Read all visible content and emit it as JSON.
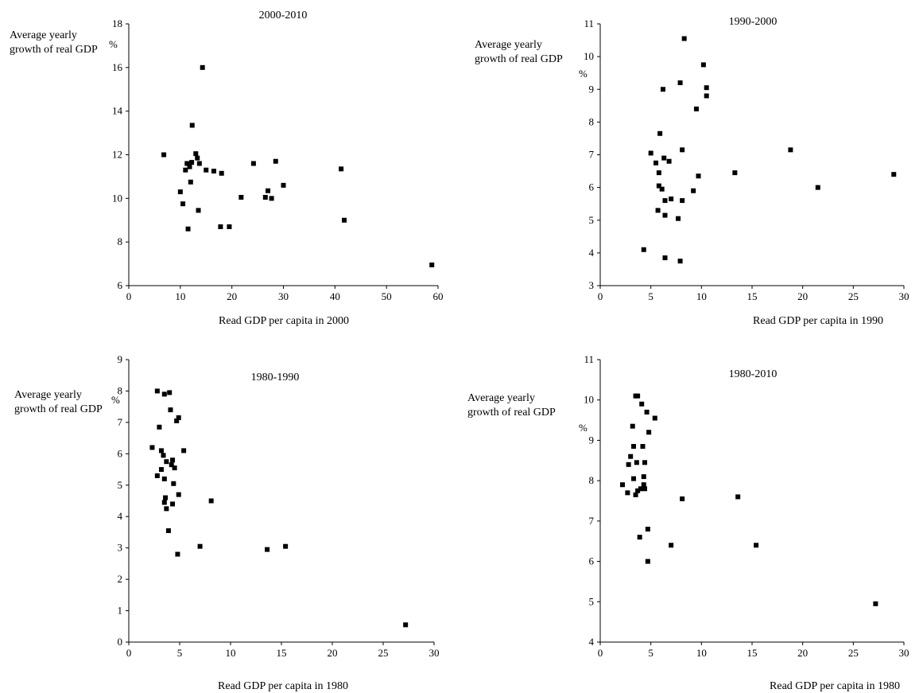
{
  "chart_data": [
    {
      "type": "scatter",
      "title": "2000-2010",
      "ylabel": "Average yearly growth of real GDP",
      "yunit": "%",
      "xlabel": "Read GDP per capita in 2000",
      "xlim": [
        0,
        60
      ],
      "ylim": [
        6,
        18
      ],
      "xticks": [
        0,
        10,
        20,
        30,
        40,
        50,
        60
      ],
      "yticks": [
        6,
        8,
        10,
        12,
        14,
        16,
        18
      ],
      "points": [
        [
          6.8,
          12.0
        ],
        [
          10.0,
          10.3
        ],
        [
          10.5,
          9.75
        ],
        [
          11.0,
          11.3
        ],
        [
          11.3,
          11.6
        ],
        [
          11.5,
          8.6
        ],
        [
          11.8,
          11.45
        ],
        [
          12.0,
          10.75
        ],
        [
          12.2,
          11.65
        ],
        [
          12.3,
          13.35
        ],
        [
          13.0,
          12.05
        ],
        [
          13.3,
          11.85
        ],
        [
          13.5,
          9.45
        ],
        [
          13.7,
          11.6
        ],
        [
          14.3,
          16.0
        ],
        [
          15.0,
          11.3
        ],
        [
          16.5,
          11.25
        ],
        [
          17.8,
          8.7
        ],
        [
          18.0,
          11.15
        ],
        [
          19.5,
          8.7
        ],
        [
          21.8,
          10.05
        ],
        [
          24.2,
          11.6
        ],
        [
          26.5,
          10.05
        ],
        [
          27.0,
          10.35
        ],
        [
          27.7,
          10.0
        ],
        [
          28.5,
          11.7
        ],
        [
          30.0,
          10.6
        ],
        [
          41.2,
          11.35
        ],
        [
          41.8,
          9.0
        ],
        [
          58.8,
          6.95
        ]
      ]
    },
    {
      "type": "scatter",
      "title": "1990-2000",
      "ylabel": "Average yearly growth of real GDP",
      "yunit": "%",
      "xlabel": "Read GDP per capita in 1990",
      "xlim": [
        0,
        30
      ],
      "ylim": [
        3,
        11
      ],
      "xticks": [
        0,
        5,
        10,
        15,
        20,
        25,
        30
      ],
      "yticks": [
        3,
        4,
        5,
        6,
        7,
        8,
        9,
        10,
        11
      ],
      "points": [
        [
          4.3,
          4.1
        ],
        [
          5.0,
          7.05
        ],
        [
          5.5,
          6.75
        ],
        [
          5.7,
          5.3
        ],
        [
          5.8,
          6.05
        ],
        [
          5.8,
          6.45
        ],
        [
          5.9,
          7.65
        ],
        [
          6.1,
          5.95
        ],
        [
          6.2,
          9.0
        ],
        [
          6.3,
          6.9
        ],
        [
          6.4,
          5.6
        ],
        [
          6.4,
          5.15
        ],
        [
          6.4,
          3.85
        ],
        [
          6.8,
          6.8
        ],
        [
          7.0,
          5.65
        ],
        [
          7.7,
          5.05
        ],
        [
          7.9,
          9.2
        ],
        [
          7.9,
          3.75
        ],
        [
          8.1,
          5.6
        ],
        [
          8.1,
          7.15
        ],
        [
          8.3,
          10.55
        ],
        [
          9.2,
          5.9
        ],
        [
          9.5,
          8.4
        ],
        [
          9.7,
          6.35
        ],
        [
          10.2,
          9.75
        ],
        [
          10.5,
          9.05
        ],
        [
          10.5,
          8.8
        ],
        [
          13.3,
          6.45
        ],
        [
          18.8,
          7.15
        ],
        [
          21.5,
          6.0
        ],
        [
          29.0,
          6.4
        ]
      ]
    },
    {
      "type": "scatter",
      "title": "1980-1990",
      "ylabel": "Average yearly growth of real GDP",
      "yunit": "%",
      "xlabel": "Read GDP per capita in 1980",
      "xlim": [
        0,
        30
      ],
      "ylim": [
        0,
        9
      ],
      "xticks": [
        0,
        5,
        10,
        15,
        20,
        25,
        30
      ],
      "yticks": [
        0,
        1,
        2,
        3,
        4,
        5,
        6,
        7,
        8,
        9
      ],
      "points": [
        [
          2.3,
          6.2
        ],
        [
          2.8,
          8.0
        ],
        [
          2.8,
          5.3
        ],
        [
          3.0,
          6.85
        ],
        [
          3.2,
          6.1
        ],
        [
          3.2,
          5.5
        ],
        [
          3.4,
          5.95
        ],
        [
          3.5,
          7.9
        ],
        [
          3.5,
          4.45
        ],
        [
          3.5,
          5.2
        ],
        [
          3.6,
          4.6
        ],
        [
          3.7,
          5.75
        ],
        [
          3.7,
          4.25
        ],
        [
          3.9,
          3.55
        ],
        [
          4.0,
          7.95
        ],
        [
          4.1,
          7.4
        ],
        [
          4.2,
          5.65
        ],
        [
          4.3,
          5.8
        ],
        [
          4.3,
          4.4
        ],
        [
          4.4,
          5.05
        ],
        [
          4.5,
          5.55
        ],
        [
          4.7,
          7.05
        ],
        [
          4.8,
          2.8
        ],
        [
          4.9,
          4.7
        ],
        [
          4.9,
          7.15
        ],
        [
          5.4,
          6.1
        ],
        [
          7.0,
          3.05
        ],
        [
          8.1,
          4.5
        ],
        [
          13.6,
          2.95
        ],
        [
          15.4,
          3.05
        ],
        [
          27.2,
          0.55
        ]
      ]
    },
    {
      "type": "scatter",
      "title": "1980-2010",
      "ylabel": "Average yearly growth of real GDP",
      "yunit": "%",
      "xlabel": "Read GDP per capita in 1980",
      "xlim": [
        0,
        30
      ],
      "ylim": [
        4,
        11
      ],
      "xticks": [
        0,
        5,
        10,
        15,
        20,
        25,
        30
      ],
      "yticks": [
        4,
        5,
        6,
        7,
        8,
        9,
        10,
        11
      ],
      "points": [
        [
          2.2,
          7.9
        ],
        [
          2.7,
          7.7
        ],
        [
          2.8,
          8.4
        ],
        [
          3.0,
          8.6
        ],
        [
          3.2,
          9.35
        ],
        [
          3.3,
          8.05
        ],
        [
          3.3,
          8.85
        ],
        [
          3.5,
          10.1
        ],
        [
          3.5,
          7.65
        ],
        [
          3.6,
          8.45
        ],
        [
          3.7,
          10.1
        ],
        [
          3.7,
          7.75
        ],
        [
          3.9,
          6.6
        ],
        [
          4.0,
          7.8
        ],
        [
          4.1,
          9.9
        ],
        [
          4.2,
          8.85
        ],
        [
          4.3,
          8.1
        ],
        [
          4.3,
          7.9
        ],
        [
          4.4,
          7.8
        ],
        [
          4.4,
          8.45
        ],
        [
          4.6,
          9.7
        ],
        [
          4.7,
          6.8
        ],
        [
          4.7,
          6.0
        ],
        [
          4.8,
          9.2
        ],
        [
          5.4,
          9.55
        ],
        [
          7.0,
          6.4
        ],
        [
          8.1,
          7.55
        ],
        [
          13.6,
          7.6
        ],
        [
          15.4,
          6.4
        ],
        [
          27.2,
          4.95
        ]
      ]
    }
  ]
}
